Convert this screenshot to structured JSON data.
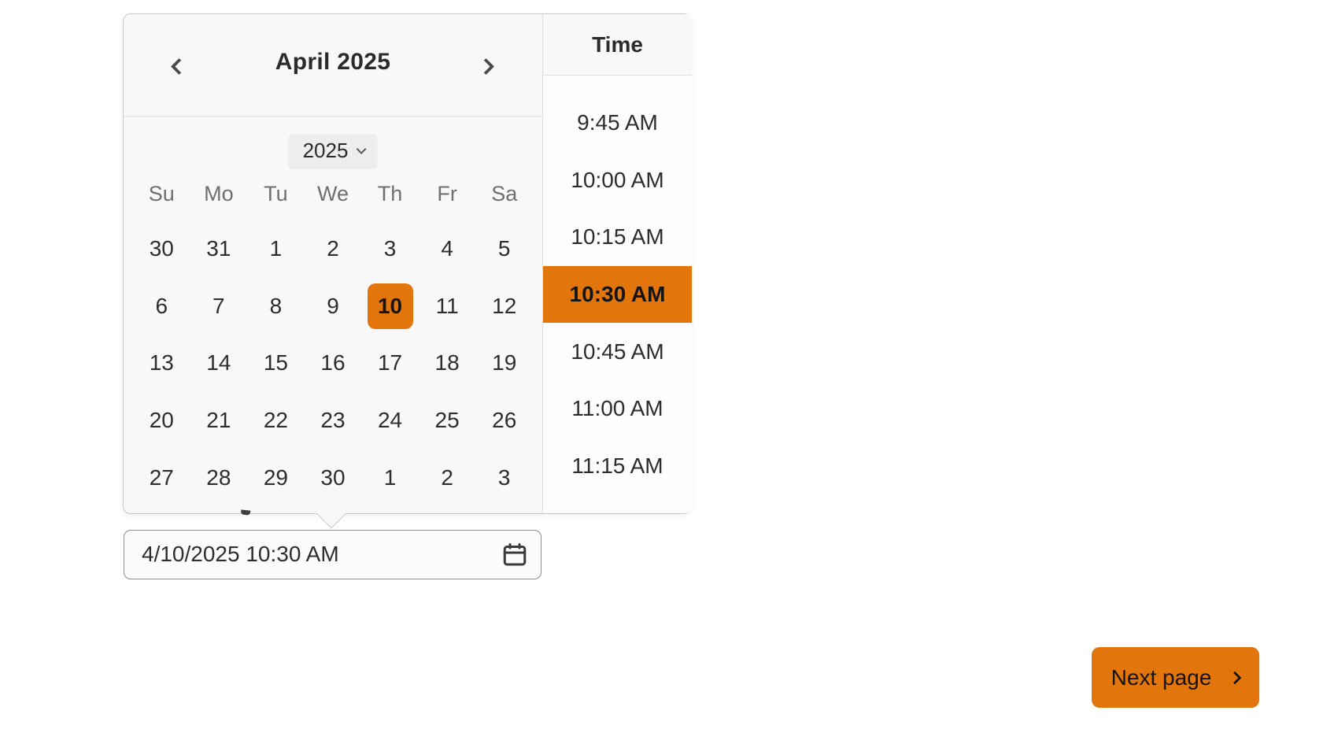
{
  "colors": {
    "accent": "#e2760c"
  },
  "picker": {
    "header": {
      "month_year": "April 2025"
    },
    "year_select": {
      "value": "2025"
    },
    "weekdays": [
      "Su",
      "Mo",
      "Tu",
      "We",
      "Th",
      "Fr",
      "Sa"
    ],
    "days": [
      "30",
      "31",
      "1",
      "2",
      "3",
      "4",
      "5",
      "6",
      "7",
      "8",
      "9",
      "10",
      "11",
      "12",
      "13",
      "14",
      "15",
      "16",
      "17",
      "18",
      "19",
      "20",
      "21",
      "22",
      "23",
      "24",
      "25",
      "26",
      "27",
      "28",
      "29",
      "30",
      "1",
      "2",
      "3"
    ],
    "selected_day_index": 11,
    "selected_day": "10",
    "time": {
      "header": "Time",
      "slots": [
        "9:45 AM",
        "10:00 AM",
        "10:15 AM",
        "10:30 AM",
        "10:45 AM",
        "11:00 AM",
        "11:15 AM"
      ],
      "selected": "10:30 AM"
    }
  },
  "datetime_input": {
    "value": "4/10/2025 10:30 AM"
  },
  "next_button": {
    "label": "Next page"
  },
  "icons": {
    "prev": "chevron-left-icon",
    "next": "chevron-right-icon",
    "year_dropdown": "chevron-down-icon",
    "input": "calendar-icon",
    "next_button": "chevron-right-icon"
  }
}
